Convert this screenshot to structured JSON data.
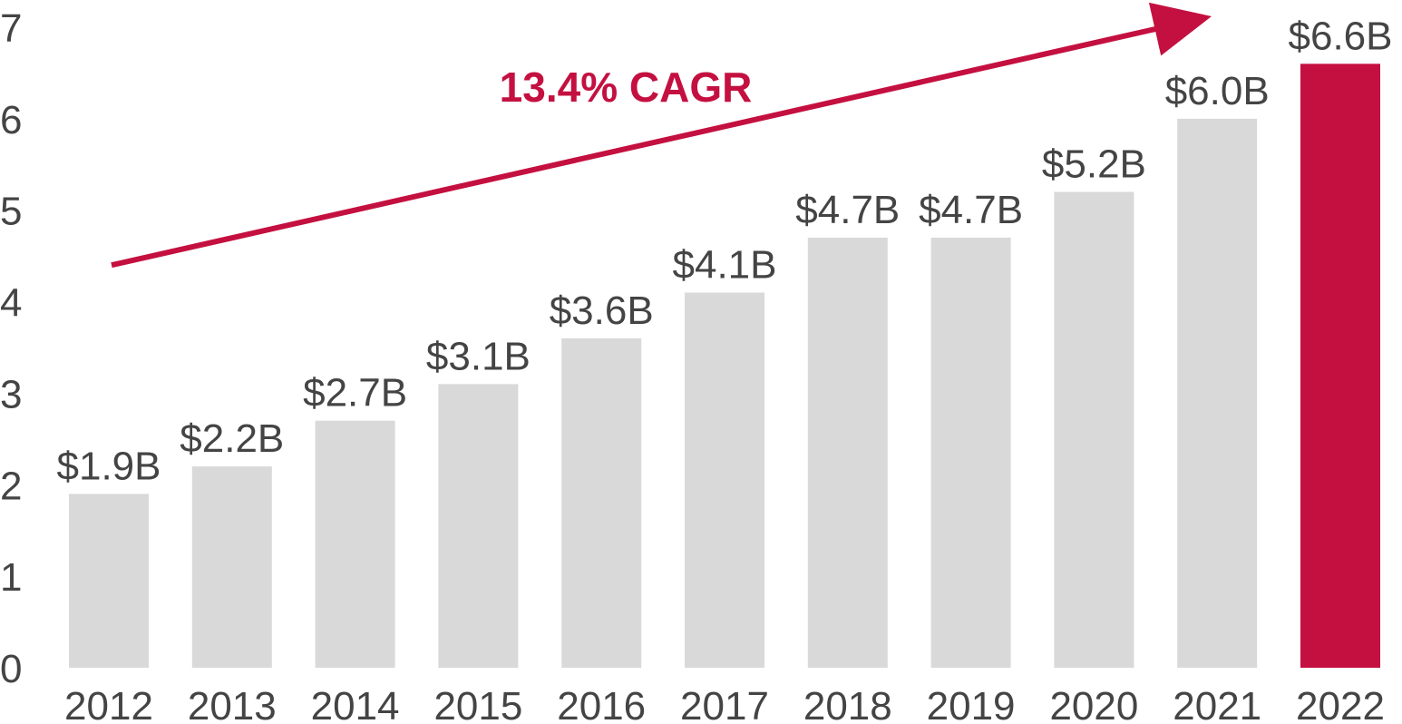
{
  "chart_data": {
    "type": "bar",
    "title": "",
    "xlabel": "",
    "ylabel": "",
    "ylim": [
      0,
      7
    ],
    "yticks": [
      0,
      1,
      2,
      3,
      4,
      5,
      6,
      7
    ],
    "ytick_labels": [
      "0",
      "1",
      "2",
      "3",
      "4",
      "5",
      "6",
      "7"
    ],
    "categories": [
      "2012",
      "2013",
      "2014",
      "2015",
      "2016",
      "2017",
      "2018",
      "2019",
      "2020",
      "2021",
      "2022"
    ],
    "values": [
      1.9,
      2.2,
      2.7,
      3.1,
      3.6,
      4.1,
      4.7,
      4.7,
      5.2,
      6.0,
      6.6
    ],
    "data_labels": [
      "$1.9B",
      "$2.2B",
      "$2.7B",
      "$3.1B",
      "$3.6B",
      "$4.1B",
      "$4.7B",
      "$4.7B",
      "$5.2B",
      "$6.0B",
      "$6.6B"
    ],
    "highlight_index": 10,
    "colors": {
      "bar": "#d9d9d9",
      "highlight": "#c41040",
      "text": "#444444",
      "accent": "#c41040"
    },
    "annotation": {
      "text": "13.4% CAGR",
      "arrow_from": 4.4,
      "arrow_to": 7.0
    },
    "grid": false,
    "legend": "none"
  }
}
